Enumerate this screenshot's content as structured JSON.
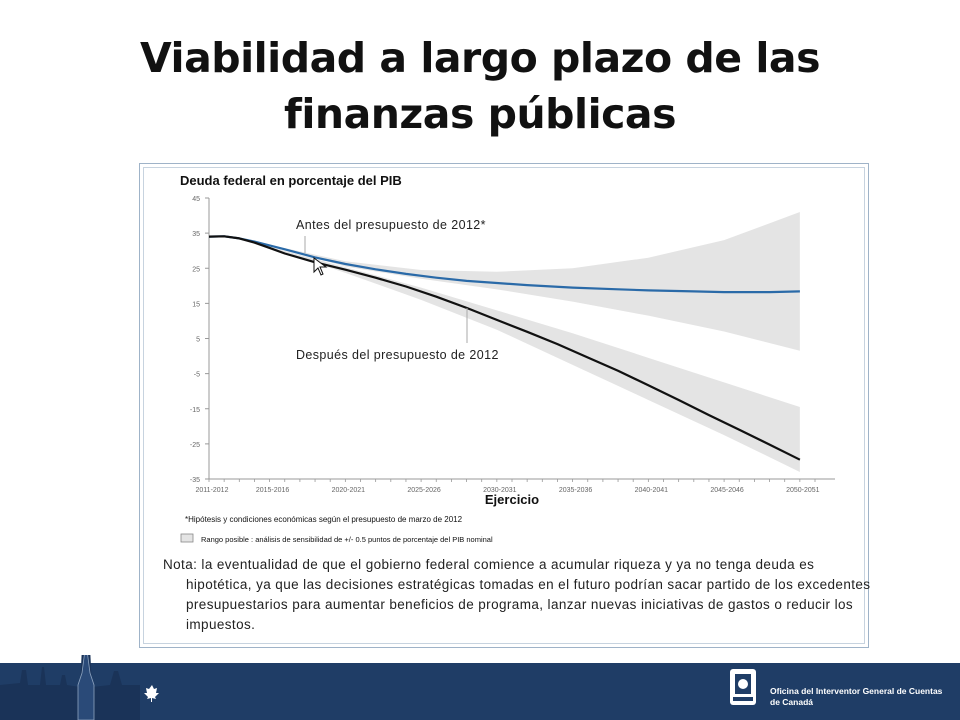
{
  "slide": {
    "title_line1": "Viabilidad a largo plazo de las",
    "title_line2": "finanzas públicas"
  },
  "note": "Nota: la eventualidad de que el gobierno federal comience a acumular riqueza y ya no tenga deuda es hipotética, ya que las decisiones estratégicas tomadas en el futuro podrían sacar partido de los excedentes presupuestarios para aumentar beneficios de programa, lanzar nuevas iniciativas de gastos o reducir los impuestos.",
  "footer": {
    "org_name": "Oficina del Interventor General de Cuentas de Canadá"
  },
  "colors": {
    "before_line": "#2a6aa8",
    "after_line": "#111111",
    "range_fill": "#e4e4e4",
    "footer_band": "#1f3d66"
  },
  "chart_data": {
    "type": "line",
    "title": "Deuda federal en porcentaje del PIB",
    "xlabel": "Ejercicio",
    "ylabel": "",
    "ylim": [
      -35,
      45
    ],
    "yticks": [
      45,
      35,
      25,
      15,
      5,
      -5,
      -15,
      -25,
      -35
    ],
    "x_start": 2011,
    "x_end": 2051,
    "xtick_labels": [
      "2011-2012",
      "2015-2016",
      "2020-2021",
      "2025-2026",
      "2030-2031",
      "2035-2036",
      "2040-2041",
      "2045-2046",
      "2050-2051"
    ],
    "xtick_years": [
      2011,
      2015,
      2020,
      2025,
      2030,
      2035,
      2040,
      2045,
      2050
    ],
    "grid": false,
    "series": [
      {
        "name": "Antes del presupuesto de 2012*",
        "color": "#2a6aa8",
        "x": [
          2011,
          2012,
          2013,
          2014,
          2015,
          2016,
          2018,
          2020,
          2022,
          2024,
          2026,
          2028,
          2030,
          2032,
          2035,
          2038,
          2040,
          2043,
          2045,
          2048,
          2050
        ],
        "y": [
          34.0,
          34.1,
          33.5,
          32.6,
          31.5,
          30.4,
          28.1,
          26.2,
          24.7,
          23.4,
          22.3,
          21.4,
          20.8,
          20.2,
          19.5,
          19.0,
          18.7,
          18.4,
          18.2,
          18.2,
          18.4
        ]
      },
      {
        "name": "Después del presupuesto de 2012",
        "color": "#111111",
        "x": [
          2011,
          2012,
          2013,
          2014,
          2015,
          2016,
          2018,
          2020,
          2022,
          2024,
          2026,
          2028,
          2030,
          2032,
          2034,
          2036,
          2038,
          2040,
          2042,
          2044,
          2046,
          2048,
          2050
        ],
        "y": [
          34.0,
          34.1,
          33.5,
          32.3,
          30.8,
          29.2,
          26.7,
          24.6,
          22.3,
          19.8,
          16.9,
          13.7,
          10.3,
          6.9,
          3.4,
          -0.4,
          -4.2,
          -8.3,
          -12.5,
          -16.8,
          -21.0,
          -25.2,
          -29.5
        ]
      }
    ],
    "range_bands": [
      {
        "series": "Antes del presupuesto de 2012*",
        "x": [
          2014,
          2020,
          2025,
          2030,
          2035,
          2040,
          2045,
          2050
        ],
        "upper": [
          32.6,
          27.0,
          24.5,
          24.0,
          25.0,
          28.0,
          33.0,
          41.0
        ],
        "lower": [
          32.6,
          25.5,
          22.0,
          19.0,
          15.5,
          11.5,
          7.0,
          1.5
        ]
      },
      {
        "series": "Después del presupuesto de 2012",
        "x": [
          2014,
          2020,
          2025,
          2030,
          2035,
          2040,
          2045,
          2050
        ],
        "upper": [
          32.3,
          25.3,
          19.5,
          13.0,
          6.5,
          -0.5,
          -7.5,
          -14.5
        ],
        "lower": [
          32.3,
          23.7,
          16.0,
          7.5,
          -2.5,
          -12.5,
          -22.5,
          -33.0
        ]
      }
    ],
    "footnote": "*Hipótesis y condiciones económicas según el presupuesto de marzo de 2012",
    "legend_range": "Rango posible : análisis de sensibilidad de +/- 0.5 puntos de porcentaje del PIB nominal"
  }
}
